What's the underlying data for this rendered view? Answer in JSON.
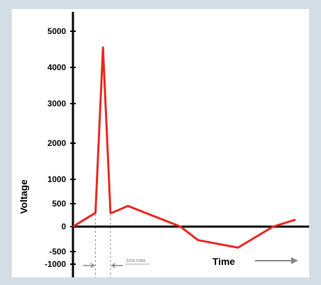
{
  "chart_data": {
    "type": "line",
    "title": "",
    "xlabel": "Time",
    "ylabel": "Voltage",
    "y_ticks": [
      {
        "value": 5000,
        "label": "5000"
      },
      {
        "value": 4000,
        "label": "4000"
      },
      {
        "value": 3000,
        "label": "3000"
      },
      {
        "value": 2000,
        "label": "2000"
      },
      {
        "value": 1000,
        "label": "1000"
      },
      {
        "value": 500,
        "label": "500"
      },
      {
        "value": 0,
        "label": "0"
      },
      {
        "value": -500,
        "label": "-500"
      },
      {
        "value": -1000,
        "label": "-1000"
      }
    ],
    "series": [
      {
        "color": "#e8251f",
        "x": [
          0,
          0.9,
          1.2,
          1.5,
          1.55,
          2.2,
          4.3,
          5.0,
          6.6,
          8.0,
          8.9
        ],
        "y": [
          0,
          300,
          4550,
          300,
          300,
          450,
          0,
          -270,
          -420,
          0,
          150
        ]
      }
    ],
    "x_axis_arrow": true,
    "annotation": "1ms max",
    "grid": false,
    "legend": "none"
  },
  "colors": {
    "background": "#d3dde6",
    "plot_background": "#ffffff",
    "series": "#e8251f",
    "axis": "#000000",
    "guide": "#888888"
  }
}
